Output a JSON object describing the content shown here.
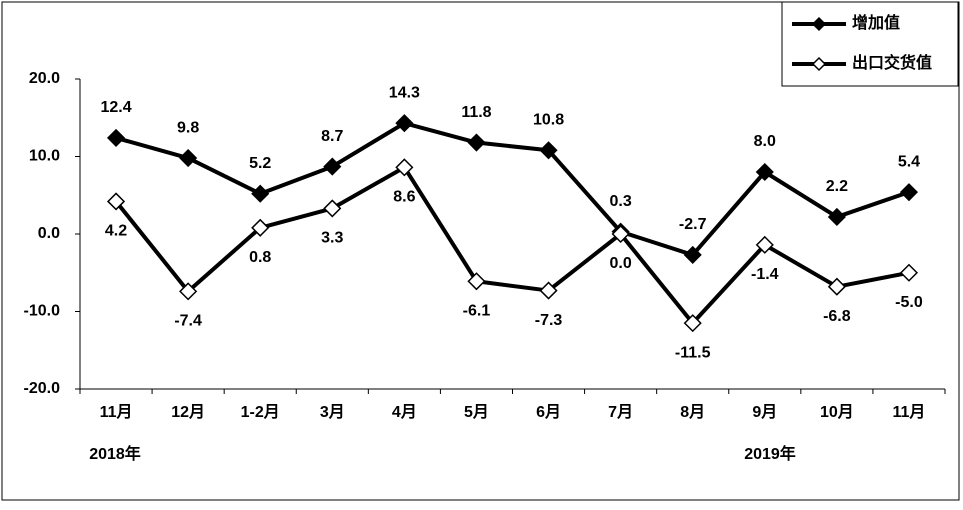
{
  "chart_data": {
    "type": "line",
    "categories": [
      "11月",
      "12月",
      "1-2月",
      "3月",
      "4月",
      "5月",
      "6月",
      "7月",
      "8月",
      "9月",
      "10月",
      "11月"
    ],
    "series": [
      {
        "name": "增加值",
        "color": "#000000",
        "marker": "filled-diamond",
        "values": [
          12.4,
          9.8,
          5.2,
          8.7,
          14.3,
          11.8,
          10.8,
          0.3,
          -2.7,
          8.0,
          2.2,
          5.4
        ],
        "value_labels": [
          "12.4",
          "9.8",
          "5.2",
          "8.7",
          "14.3",
          "11.8",
          "10.8",
          "0.3",
          "-2.7",
          "8.0",
          "2.2",
          "5.4"
        ]
      },
      {
        "name": "出口交货值",
        "color": "#000000",
        "marker": "open-diamond",
        "values": [
          4.2,
          -7.4,
          0.8,
          3.3,
          8.6,
          -6.1,
          -7.3,
          0.0,
          -11.5,
          -1.4,
          -6.8,
          -5.0
        ],
        "value_labels": [
          "4.2",
          "-7.4",
          "0.8",
          "3.3",
          "8.6",
          "-6.1",
          "-7.3",
          "0.0",
          "-11.5",
          "-1.4",
          "-6.8",
          "-5.0"
        ]
      }
    ],
    "ylim": [
      -20,
      20
    ],
    "yticks": [
      {
        "value": -20,
        "label": "-20.0"
      },
      {
        "value": -10,
        "label": "-10.0"
      },
      {
        "value": 0,
        "label": "0.0"
      },
      {
        "value": 10,
        "label": "10.0"
      },
      {
        "value": 20,
        "label": "20.0"
      }
    ],
    "annotations": [
      "2018年",
      "2019年"
    ],
    "grid": false,
    "legend": "top-right"
  }
}
